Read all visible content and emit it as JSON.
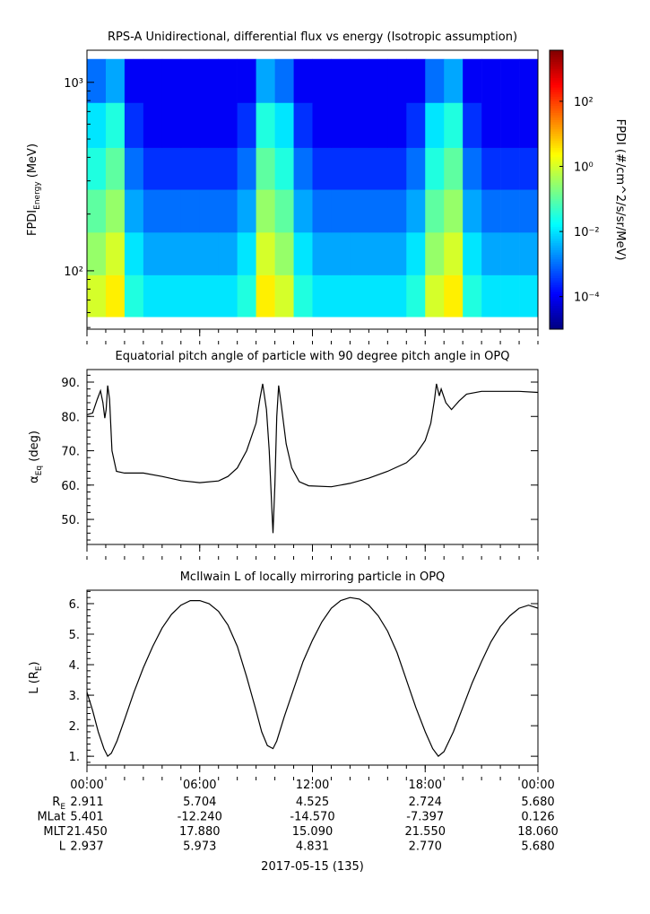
{
  "chart_data": [
    {
      "type": "heatmap",
      "title": "RPS-A Unidirectional, differential flux vs energy (Isotropic assumption)",
      "y_label": {
        "main": "FPDI",
        "sub": "Energy",
        "unit": " (MeV)"
      },
      "colorbar_label": "FPDI (#/cm^2/s/sr/MeV)",
      "x_bins": [
        0,
        1,
        2,
        3,
        4,
        5,
        6,
        7,
        8,
        9,
        10,
        11,
        12,
        13,
        14,
        15,
        16,
        17,
        18,
        19,
        20,
        21,
        22,
        23,
        24
      ],
      "y_bins": [
        57,
        95,
        160,
        270,
        450,
        780,
        1330
      ],
      "values": [
        [
          1,
          3,
          0.03,
          0.01,
          0.01,
          0.01,
          0.01,
          0.01,
          0.03,
          3,
          1,
          0.03,
          0.01,
          0.01,
          0.01,
          0.01,
          0.01,
          0.03,
          1,
          3,
          0.03,
          0.01,
          0.01,
          0.01
        ],
        [
          0.3,
          1,
          0.01,
          0.003,
          0.003,
          0.003,
          0.003,
          0.003,
          0.01,
          1,
          0.3,
          0.01,
          0.003,
          0.003,
          0.003,
          0.003,
          0.003,
          0.01,
          0.3,
          1,
          0.01,
          0.003,
          0.003,
          0.003
        ],
        [
          0.1,
          0.3,
          0.003,
          0.001,
          0.001,
          0.001,
          0.001,
          0.001,
          0.003,
          0.3,
          0.1,
          0.003,
          0.001,
          0.001,
          0.001,
          0.001,
          0.001,
          0.003,
          0.1,
          0.3,
          0.003,
          0.001,
          0.001,
          0.001
        ],
        [
          0.03,
          0.1,
          0.001,
          0.0003,
          0.0003,
          0.0003,
          0.0003,
          0.0003,
          0.001,
          0.1,
          0.03,
          0.001,
          0.0003,
          0.0003,
          0.0003,
          0.0003,
          0.0003,
          0.001,
          0.03,
          0.1,
          0.001,
          0.0003,
          0.0003,
          0.0003
        ],
        [
          0.01,
          0.03,
          0.0003,
          0.0001,
          0.0001,
          0.0001,
          0.0001,
          0.0001,
          0.0003,
          0.03,
          0.01,
          0.0003,
          0.0001,
          0.0001,
          0.0001,
          0.0001,
          0.0001,
          0.0003,
          0.01,
          0.03,
          0.0003,
          0.0001,
          0.0001,
          0.0001
        ],
        [
          0.001,
          0.003,
          0.0001,
          0.0001,
          0.0001,
          0.0001,
          0.0001,
          0.0001,
          0.0001,
          0.003,
          0.001,
          0.0001,
          0.0001,
          0.0001,
          0.0001,
          0.0001,
          0.0001,
          0.0001,
          0.001,
          0.003,
          0.0001,
          0.0001,
          0.0001,
          0.0001
        ]
      ],
      "xlim": [
        0,
        24
      ],
      "xticks": [
        0,
        6,
        12,
        18,
        24
      ],
      "ylim": [
        49,
        1480
      ],
      "log_y": true,
      "yticks": [
        {
          "value": 100,
          "label": "10²"
        },
        {
          "value": 1000,
          "label": "10³"
        }
      ],
      "clim": [
        1e-05,
        3700
      ],
      "colormap": "jet",
      "cticks": [
        {
          "value": 0.0001,
          "label": "10⁻⁴"
        },
        {
          "value": 0.01,
          "label": "10⁻²"
        },
        {
          "value": 1,
          "label": "10⁰"
        },
        {
          "value": 100,
          "label": "10²"
        }
      ]
    },
    {
      "type": "line",
      "title": "Equatorial pitch angle of particle with 90 degree pitch angle in OPQ",
      "y_label": {
        "main": "α",
        "sub": "Eq",
        "unit": " (deg)"
      },
      "color": "#000000",
      "x": [
        0,
        0.3,
        0.55,
        0.72,
        0.85,
        0.95,
        1.02,
        1.1,
        1.2,
        1.33,
        1.57,
        2,
        3,
        4,
        5,
        6,
        7,
        7.5,
        8,
        8.5,
        9,
        9.2,
        9.35,
        9.55,
        9.7,
        9.85,
        9.9,
        10,
        10.1,
        10.2,
        10.35,
        10.6,
        10.9,
        11.3,
        11.8,
        13,
        14,
        15,
        16,
        17,
        17.5,
        18,
        18.3,
        18.5,
        18.6,
        18.75,
        18.85,
        19.1,
        19.4,
        19.8,
        20.2,
        21,
        22,
        23,
        24
      ],
      "values": [
        80.5,
        81,
        85,
        87.5,
        84,
        79.5,
        82,
        89,
        85,
        70,
        64,
        63.5,
        63.5,
        62.5,
        61.3,
        60.7,
        61.2,
        62.5,
        65,
        70,
        78,
        85,
        89.5,
        82,
        70,
        52,
        46,
        60,
        80,
        89,
        83,
        72,
        65,
        61,
        59.8,
        59.5,
        60.5,
        62,
        64,
        66.5,
        69,
        73,
        78,
        85,
        89.5,
        86,
        88,
        84,
        82,
        84.5,
        86.5,
        87.3,
        87.3,
        87.3,
        87
      ],
      "xlim": [
        0,
        24
      ],
      "xticks": [
        0,
        6,
        12,
        18,
        24
      ],
      "ylim": [
        42.7,
        93.66
      ],
      "yticks": [
        {
          "value": 50,
          "label": "50."
        },
        {
          "value": 60,
          "label": "60."
        },
        {
          "value": 70,
          "label": "70."
        },
        {
          "value": 80,
          "label": "80."
        },
        {
          "value": 90,
          "label": "90."
        }
      ]
    },
    {
      "type": "line",
      "title": "McIlwain L of locally mirroring particle in OPQ",
      "y_label": {
        "main": "L (R",
        "sub": "E",
        "unit": ")"
      },
      "color": "#000000",
      "x": [
        0,
        0.3,
        0.6,
        0.9,
        1.1,
        1.3,
        1.6,
        2,
        2.5,
        3,
        3.5,
        4,
        4.5,
        5,
        5.5,
        6,
        6.5,
        7,
        7.5,
        8,
        8.5,
        9,
        9.3,
        9.6,
        9.9,
        10.1,
        10.5,
        11,
        11.5,
        12,
        12.5,
        13,
        13.5,
        14,
        14.5,
        15,
        15.5,
        16,
        16.5,
        17,
        17.5,
        18,
        18.4,
        18.7,
        19,
        19.5,
        20,
        20.5,
        21,
        21.5,
        22,
        22.5,
        23,
        23.5,
        24
      ],
      "values": [
        3.1,
        2.5,
        1.8,
        1.25,
        1.0,
        1.1,
        1.5,
        2.2,
        3.1,
        3.9,
        4.6,
        5.2,
        5.65,
        5.95,
        6.1,
        6.1,
        6.0,
        5.75,
        5.3,
        4.6,
        3.6,
        2.5,
        1.8,
        1.35,
        1.25,
        1.5,
        2.3,
        3.2,
        4.1,
        4.8,
        5.4,
        5.85,
        6.1,
        6.2,
        6.15,
        5.95,
        5.6,
        5.1,
        4.4,
        3.5,
        2.6,
        1.8,
        1.25,
        1.0,
        1.15,
        1.8,
        2.6,
        3.4,
        4.1,
        4.75,
        5.25,
        5.6,
        5.85,
        5.95,
        5.85
      ],
      "xlim": [
        0,
        24
      ],
      "xticks": [
        {
          "value": 0,
          "label": "00:00"
        },
        {
          "value": 6,
          "label": "06:00"
        },
        {
          "value": 12,
          "label": "12:00"
        },
        {
          "value": 18,
          "label": "18:00"
        },
        {
          "value": 24,
          "label": "00:00"
        }
      ],
      "ylim": [
        0.71,
        6.44
      ],
      "yticks": [
        {
          "value": 1,
          "label": "1."
        },
        {
          "value": 2,
          "label": "2."
        },
        {
          "value": 3,
          "label": "3."
        },
        {
          "value": 4,
          "label": "4."
        },
        {
          "value": 5,
          "label": "5."
        },
        {
          "value": 6,
          "label": "6."
        }
      ]
    }
  ],
  "ephemeris": {
    "rows": [
      {
        "label": "R",
        "sub": "E",
        "values": [
          "2.911",
          "5.704",
          "4.525",
          "2.724",
          "5.680"
        ]
      },
      {
        "label": "MLat",
        "values": [
          "5.401",
          "-12.240",
          "-14.570",
          "-7.397",
          "0.126"
        ]
      },
      {
        "label": "MLT",
        "values": [
          "21.450",
          "17.880",
          "15.090",
          "21.550",
          "18.060"
        ]
      },
      {
        "label": "L",
        "values": [
          "2.937",
          "5.973",
          "4.831",
          "2.770",
          "5.680"
        ]
      }
    ],
    "date": "2017-05-15 (135)"
  }
}
